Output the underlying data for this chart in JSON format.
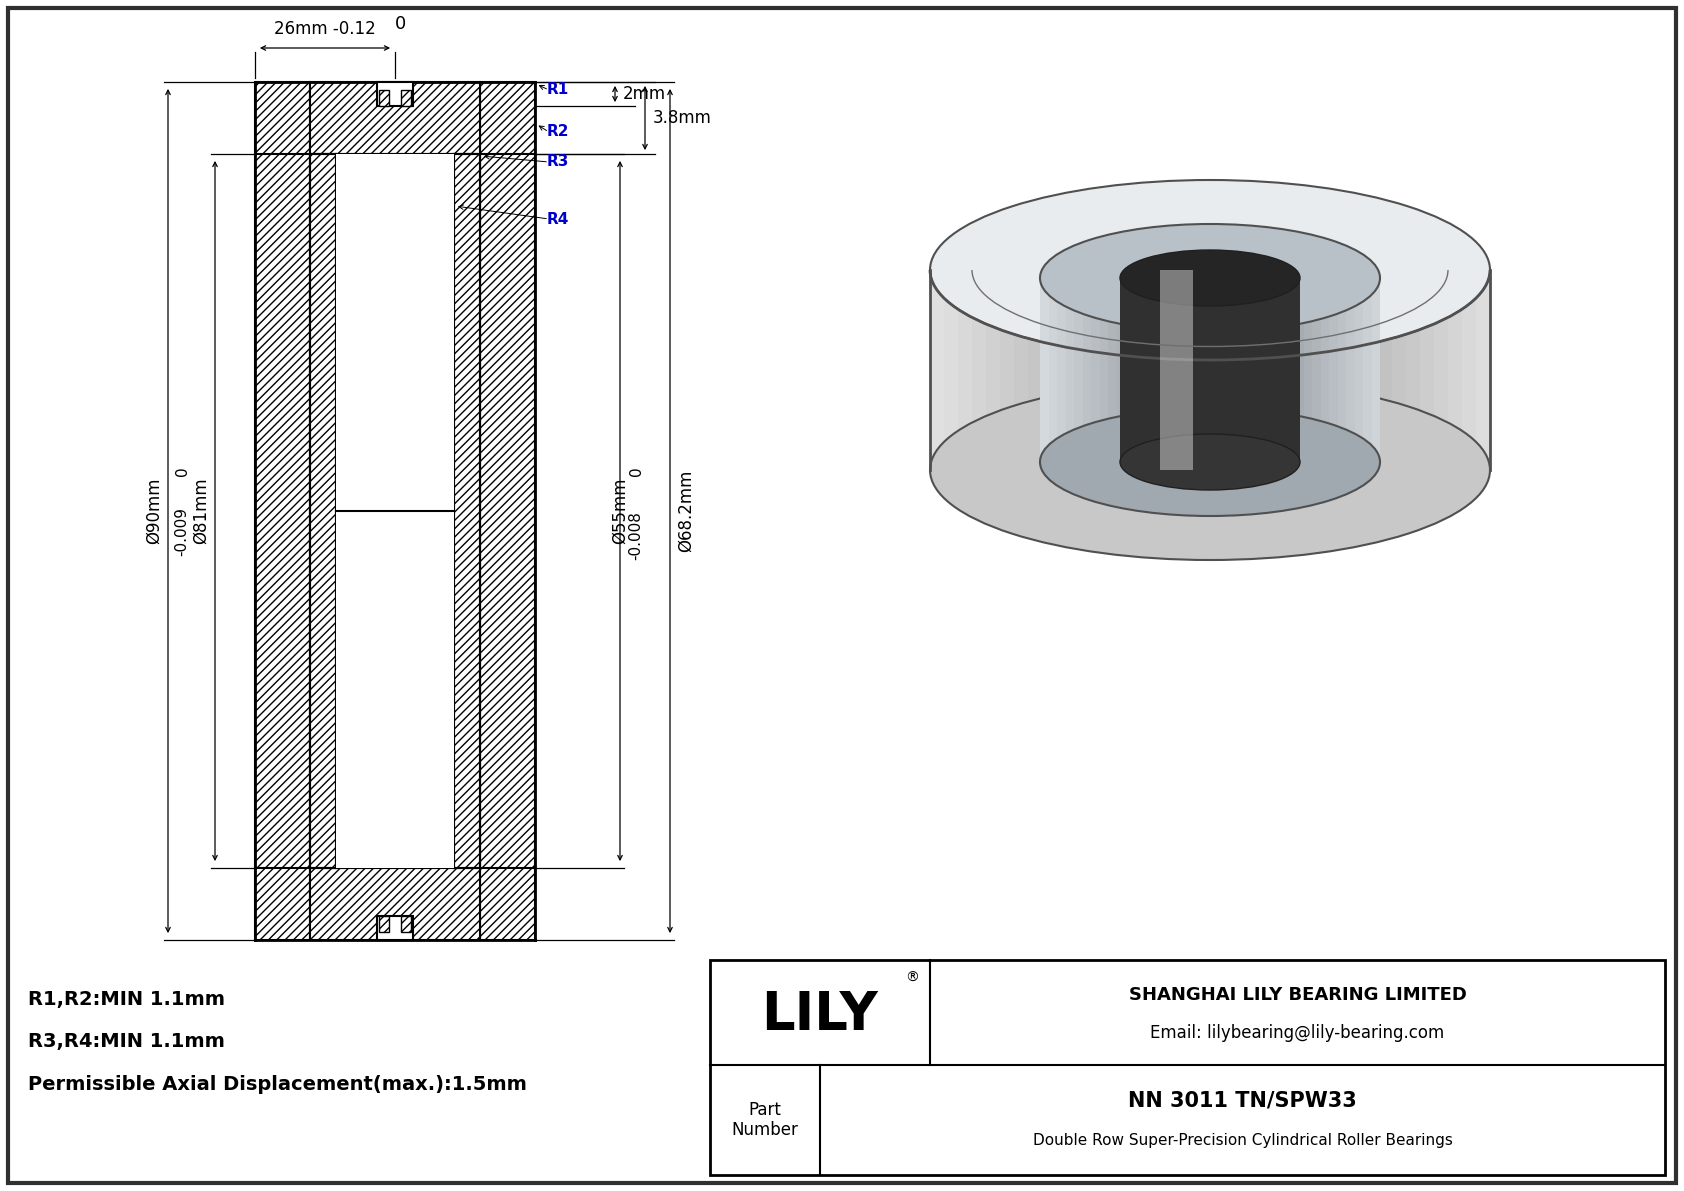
{
  "bg_color": "#ffffff",
  "line_color": "#000000",
  "blue_color": "#0000cd",
  "title_block": {
    "company": "SHANGHAI LILY BEARING LIMITED",
    "email": "Email: lilybearing@lily-bearing.com",
    "brand": "LILY",
    "brand_reg": "®",
    "part_label": "Part\nNumber",
    "part_number": "NN 3011 TN/SPW33",
    "part_desc": "Double Row Super-Precision Cylindrical Roller Bearings"
  },
  "dim_labels": {
    "top_zero": "0",
    "top_dim1": "26mm -0.12",
    "top_dim2": "2mm",
    "top_dim3": "3.8mm",
    "left_zero": "0",
    "left_tol": "-0.009",
    "left_od": "Ø90mm",
    "left_id": "Ø81mm",
    "right_zero": "0",
    "right_tol": "-0.008",
    "right_id1": "Ø55mm",
    "right_id2": "Ø68.2mm",
    "r1": "R1",
    "r2": "R2",
    "r3": "R3",
    "r4": "R4",
    "note1": "R1,R2:MIN 1.1mm",
    "note2": "R3,R4:MIN 1.1mm",
    "note3": "Permissible Axial Displacement(max.):1.5mm"
  }
}
